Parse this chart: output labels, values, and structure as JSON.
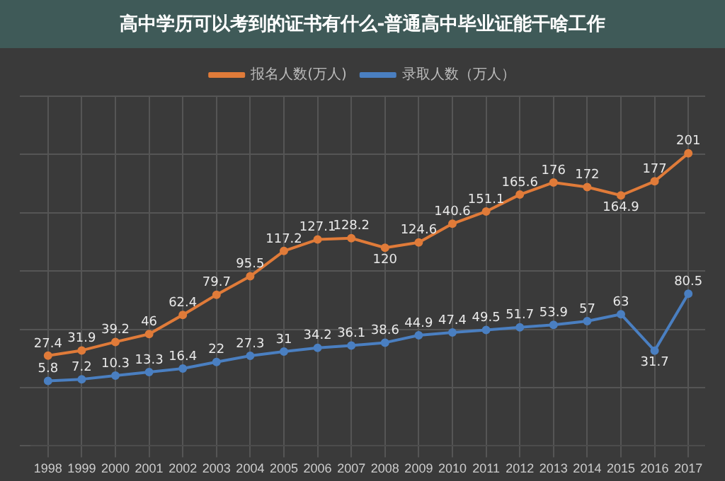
{
  "chart_data": {
    "type": "line",
    "title": "高中学历可以考到的证书有什么-普通高中毕业证能干啥工作",
    "categories": [
      "1998",
      "1999",
      "2000",
      "2001",
      "2002",
      "2003",
      "2004",
      "2005",
      "2006",
      "2007",
      "2008",
      "2009",
      "2010",
      "2011",
      "2012",
      "2013",
      "2014",
      "2015",
      "2016",
      "2017"
    ],
    "series": [
      {
        "name": "报名人数(万人)",
        "color": "#e07b39",
        "values": [
          27.4,
          31.9,
          39.2,
          46,
          62.4,
          79.7,
          95.5,
          117.2,
          127.1,
          128.2,
          120,
          124.6,
          140.6,
          151.1,
          165.6,
          176,
          172,
          164.9,
          177,
          201
        ]
      },
      {
        "name": "录取人数（万人）",
        "color": "#4a7fc1",
        "values": [
          5.8,
          7.2,
          10.3,
          13.3,
          16.4,
          22,
          27.3,
          31,
          34.2,
          36.1,
          38.6,
          44.9,
          47.4,
          49.5,
          51.7,
          53.9,
          57,
          63,
          31.7,
          80.5
        ]
      }
    ],
    "data_labels": true,
    "grid": true,
    "legend": "top",
    "tick_labels": "x",
    "marker": "circle",
    "line_style": "solid"
  }
}
